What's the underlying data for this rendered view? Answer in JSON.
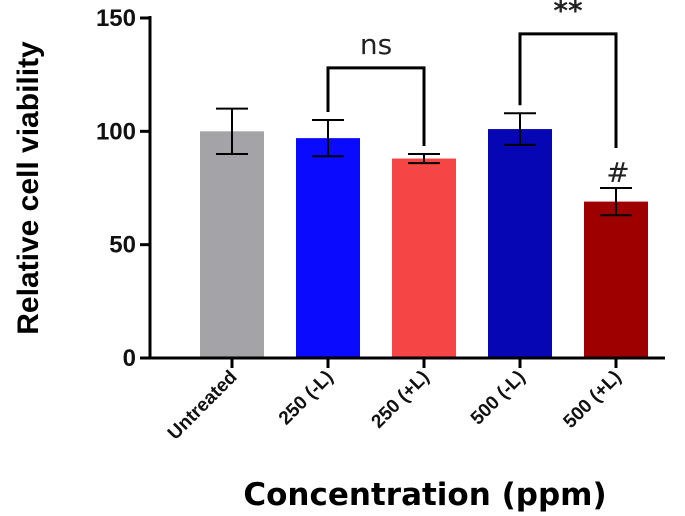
{
  "chart_data": {
    "type": "bar",
    "categories": [
      "Untreated",
      "250 (-L)",
      "250 (+L)",
      "500 (-L)",
      "500 (+L)"
    ],
    "values": [
      100,
      97,
      88,
      101,
      69
    ],
    "error": [
      10,
      8,
      2,
      7,
      6
    ],
    "colors": [
      "#a3a3a8",
      "#0a0aff",
      "#f54545",
      "#0606b4",
      "#9e0000"
    ],
    "xlabel": "Concentration (ppm)",
    "ylabel": "Relative cell viability",
    "ylim": [
      0,
      150
    ],
    "yticks": [
      0,
      50,
      100,
      150
    ],
    "annotations": [
      {
        "type": "bracket",
        "from": 1,
        "to": 2,
        "text": "ns"
      },
      {
        "type": "bracket",
        "from": 3,
        "to": 4,
        "text": "**"
      },
      {
        "type": "marker",
        "index": 4,
        "text": "#"
      }
    ]
  }
}
